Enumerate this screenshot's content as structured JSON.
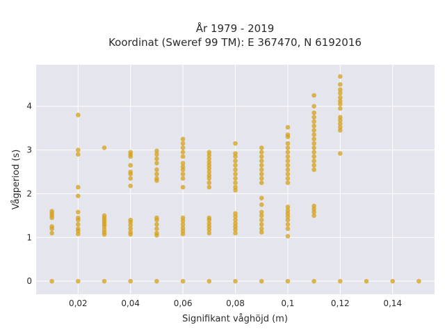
{
  "chart_data": {
    "type": "scatter",
    "title_lines": [
      "År 1979 - 2019",
      "Koordinat (Sweref 99 TM): E 367470, N 6192016"
    ],
    "xlabel": "Signifikant våghöjd (m)",
    "ylabel": "Vågperiod (s)",
    "xlim": [
      0.004,
      0.156
    ],
    "ylim": [
      -0.3,
      4.95
    ],
    "x_ticks": [
      0.02,
      0.04,
      0.06,
      0.08,
      0.1,
      0.12,
      0.14
    ],
    "x_tick_labels": [
      "0,02",
      "0,04",
      "0,06",
      "0,08",
      "0,1",
      "0,12",
      "0,14"
    ],
    "y_ticks": [
      0,
      1,
      2,
      3,
      4
    ],
    "y_tick_labels": [
      "0",
      "1",
      "2",
      "3",
      "4"
    ],
    "grid": true,
    "legend": "none",
    "background_color": "#e5e5ee",
    "grid_color": "#ffffff",
    "marker_color": "#d4a017",
    "series": [
      {
        "points": [
          [
            0.01,
            0
          ],
          [
            0.01,
            1.1
          ],
          [
            0.01,
            1.2
          ],
          [
            0.01,
            1.25
          ],
          [
            0.01,
            1.45
          ],
          [
            0.01,
            1.5
          ],
          [
            0.01,
            1.55
          ],
          [
            0.01,
            1.6
          ],
          [
            0.02,
            0
          ],
          [
            0.02,
            1.08
          ],
          [
            0.02,
            1.15
          ],
          [
            0.02,
            1.2
          ],
          [
            0.02,
            1.3
          ],
          [
            0.02,
            1.4
          ],
          [
            0.02,
            1.45
          ],
          [
            0.02,
            1.58
          ],
          [
            0.02,
            1.95
          ],
          [
            0.02,
            2.15
          ],
          [
            0.02,
            2.9
          ],
          [
            0.02,
            3.0
          ],
          [
            0.02,
            3.8
          ],
          [
            0.03,
            0
          ],
          [
            0.03,
            1.07
          ],
          [
            0.03,
            1.12
          ],
          [
            0.03,
            1.18
          ],
          [
            0.03,
            1.25
          ],
          [
            0.03,
            1.3
          ],
          [
            0.03,
            1.35
          ],
          [
            0.03,
            1.4
          ],
          [
            0.03,
            1.45
          ],
          [
            0.03,
            1.5
          ],
          [
            0.03,
            3.05
          ],
          [
            0.04,
            0
          ],
          [
            0.04,
            1.07
          ],
          [
            0.04,
            1.12
          ],
          [
            0.04,
            1.2
          ],
          [
            0.04,
            1.28
          ],
          [
            0.04,
            1.35
          ],
          [
            0.04,
            1.4
          ],
          [
            0.04,
            2.18
          ],
          [
            0.04,
            2.35
          ],
          [
            0.04,
            2.45
          ],
          [
            0.04,
            2.5
          ],
          [
            0.04,
            2.65
          ],
          [
            0.04,
            2.85
          ],
          [
            0.04,
            2.9
          ],
          [
            0.04,
            2.95
          ],
          [
            0.05,
            0
          ],
          [
            0.05,
            1.05
          ],
          [
            0.05,
            1.1
          ],
          [
            0.05,
            1.2
          ],
          [
            0.05,
            1.3
          ],
          [
            0.05,
            1.4
          ],
          [
            0.05,
            1.45
          ],
          [
            0.05,
            2.3
          ],
          [
            0.05,
            2.35
          ],
          [
            0.05,
            2.45
          ],
          [
            0.05,
            2.55
          ],
          [
            0.05,
            2.7
          ],
          [
            0.05,
            2.8
          ],
          [
            0.05,
            2.9
          ],
          [
            0.05,
            2.98
          ],
          [
            0.06,
            0
          ],
          [
            0.06,
            1.08
          ],
          [
            0.06,
            1.15
          ],
          [
            0.06,
            1.22
          ],
          [
            0.06,
            1.3
          ],
          [
            0.06,
            1.38
          ],
          [
            0.06,
            1.45
          ],
          [
            0.06,
            2.15
          ],
          [
            0.06,
            2.35
          ],
          [
            0.06,
            2.45
          ],
          [
            0.06,
            2.55
          ],
          [
            0.06,
            2.62
          ],
          [
            0.06,
            2.7
          ],
          [
            0.06,
            2.85
          ],
          [
            0.06,
            2.95
          ],
          [
            0.06,
            3.05
          ],
          [
            0.06,
            3.15
          ],
          [
            0.06,
            3.25
          ],
          [
            0.07,
            0
          ],
          [
            0.07,
            1.1
          ],
          [
            0.07,
            1.18
          ],
          [
            0.07,
            1.25
          ],
          [
            0.07,
            1.32
          ],
          [
            0.07,
            1.4
          ],
          [
            0.07,
            1.45
          ],
          [
            0.07,
            2.15
          ],
          [
            0.07,
            2.25
          ],
          [
            0.07,
            2.35
          ],
          [
            0.07,
            2.42
          ],
          [
            0.07,
            2.5
          ],
          [
            0.07,
            2.58
          ],
          [
            0.07,
            2.65
          ],
          [
            0.07,
            2.72
          ],
          [
            0.07,
            2.8
          ],
          [
            0.07,
            2.88
          ],
          [
            0.07,
            2.95
          ],
          [
            0.08,
            0
          ],
          [
            0.08,
            1.1
          ],
          [
            0.08,
            1.18
          ],
          [
            0.08,
            1.25
          ],
          [
            0.08,
            1.32
          ],
          [
            0.08,
            1.4
          ],
          [
            0.08,
            1.48
          ],
          [
            0.08,
            1.55
          ],
          [
            0.08,
            2.08
          ],
          [
            0.08,
            2.15
          ],
          [
            0.08,
            2.25
          ],
          [
            0.08,
            2.35
          ],
          [
            0.08,
            2.45
          ],
          [
            0.08,
            2.55
          ],
          [
            0.08,
            2.65
          ],
          [
            0.08,
            2.75
          ],
          [
            0.08,
            2.85
          ],
          [
            0.08,
            2.92
          ],
          [
            0.08,
            3.15
          ],
          [
            0.09,
            0
          ],
          [
            0.09,
            1.12
          ],
          [
            0.09,
            1.2
          ],
          [
            0.09,
            1.3
          ],
          [
            0.09,
            1.4
          ],
          [
            0.09,
            1.5
          ],
          [
            0.09,
            1.58
          ],
          [
            0.09,
            1.75
          ],
          [
            0.09,
            1.9
          ],
          [
            0.09,
            2.25
          ],
          [
            0.09,
            2.35
          ],
          [
            0.09,
            2.45
          ],
          [
            0.09,
            2.55
          ],
          [
            0.09,
            2.65
          ],
          [
            0.09,
            2.75
          ],
          [
            0.09,
            2.85
          ],
          [
            0.09,
            2.95
          ],
          [
            0.09,
            3.05
          ],
          [
            0.1,
            0
          ],
          [
            0.1,
            1.03
          ],
          [
            0.1,
            1.2
          ],
          [
            0.1,
            1.3
          ],
          [
            0.1,
            1.4
          ],
          [
            0.1,
            1.48
          ],
          [
            0.1,
            1.55
          ],
          [
            0.1,
            1.62
          ],
          [
            0.1,
            1.7
          ],
          [
            0.1,
            2.25
          ],
          [
            0.1,
            2.35
          ],
          [
            0.1,
            2.45
          ],
          [
            0.1,
            2.55
          ],
          [
            0.1,
            2.65
          ],
          [
            0.1,
            2.75
          ],
          [
            0.1,
            2.85
          ],
          [
            0.1,
            2.95
          ],
          [
            0.1,
            3.05
          ],
          [
            0.1,
            3.15
          ],
          [
            0.1,
            3.3
          ],
          [
            0.1,
            3.35
          ],
          [
            0.1,
            3.52
          ],
          [
            0.11,
            0
          ],
          [
            0.11,
            1.5
          ],
          [
            0.11,
            1.58
          ],
          [
            0.11,
            1.65
          ],
          [
            0.11,
            1.72
          ],
          [
            0.11,
            2.55
          ],
          [
            0.11,
            2.65
          ],
          [
            0.11,
            2.75
          ],
          [
            0.11,
            2.85
          ],
          [
            0.11,
            2.95
          ],
          [
            0.11,
            3.05
          ],
          [
            0.11,
            3.15
          ],
          [
            0.11,
            3.25
          ],
          [
            0.11,
            3.35
          ],
          [
            0.11,
            3.45
          ],
          [
            0.11,
            3.55
          ],
          [
            0.11,
            3.65
          ],
          [
            0.11,
            3.75
          ],
          [
            0.11,
            3.85
          ],
          [
            0.11,
            4.0
          ],
          [
            0.11,
            4.25
          ],
          [
            0.12,
            0
          ],
          [
            0.12,
            2.92
          ],
          [
            0.12,
            3.45
          ],
          [
            0.12,
            3.52
          ],
          [
            0.12,
            3.6
          ],
          [
            0.12,
            3.68
          ],
          [
            0.12,
            3.75
          ],
          [
            0.12,
            3.95
          ],
          [
            0.12,
            4.05
          ],
          [
            0.12,
            4.12
          ],
          [
            0.12,
            4.2
          ],
          [
            0.12,
            4.3
          ],
          [
            0.12,
            4.38
          ],
          [
            0.12,
            4.5
          ],
          [
            0.12,
            4.68
          ],
          [
            0.13,
            0
          ],
          [
            0.14,
            0
          ],
          [
            0.15,
            0
          ]
        ]
      }
    ]
  }
}
